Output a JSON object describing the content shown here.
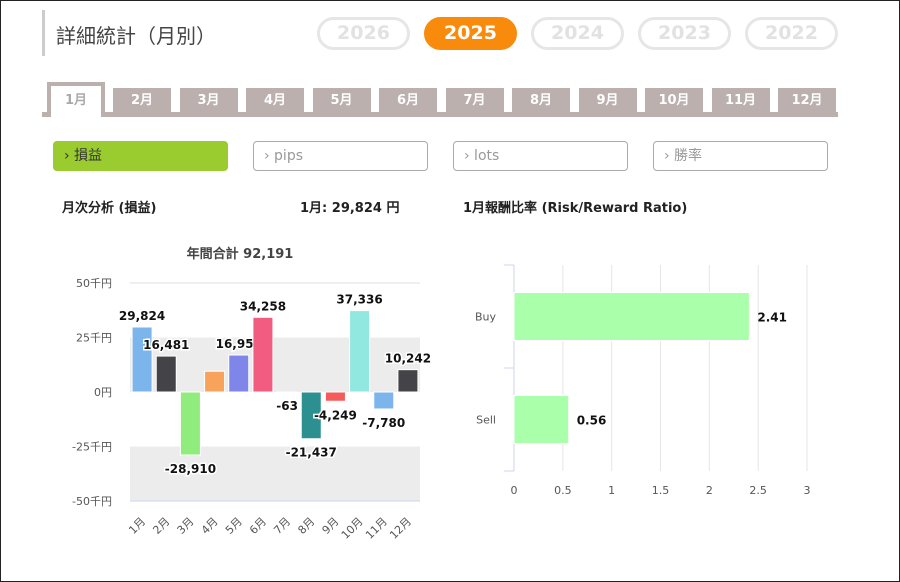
{
  "header": {
    "title": "詳細統計（月別）",
    "years": [
      {
        "label": "2026",
        "active": false
      },
      {
        "label": "2025",
        "active": true
      },
      {
        "label": "2024",
        "active": false
      },
      {
        "label": "2023",
        "active": false
      },
      {
        "label": "2022",
        "active": false
      }
    ]
  },
  "month_tabs": [
    "1月",
    "2月",
    "3月",
    "4月",
    "5月",
    "6月",
    "7月",
    "8月",
    "9月",
    "10月",
    "11月",
    "12月"
  ],
  "active_month": "1月",
  "metric_buttons": [
    {
      "label": "› 損益",
      "active": true
    },
    {
      "label": "› pips",
      "active": false
    },
    {
      "label": "› lots",
      "active": false
    },
    {
      "label": "› 勝率",
      "active": false
    }
  ],
  "left_panel": {
    "title": "月次分析 (損益)",
    "month_value": "1月:  29,824 円"
  },
  "right_panel": {
    "title": "1月報酬比率 (Risk/Reward Ratio)"
  },
  "chart_data": [
    {
      "type": "bar",
      "title": "年間合計 92,191",
      "categories": [
        "1月",
        "2月",
        "3月",
        "4月",
        "5月",
        "6月",
        "7月",
        "8月",
        "9月",
        "10月",
        "11月",
        "12月"
      ],
      "values": [
        29824,
        16481,
        -28910,
        9534,
        16955,
        34258,
        -63,
        -21437,
        -4249,
        37336,
        -7780,
        10242
      ],
      "data_labels": [
        "29,824",
        "16,481",
        "-28,910",
        "",
        "16,955",
        "34,258",
        "-63",
        "-21,437",
        "-4,249",
        "37,336",
        "-7,780",
        "10,242"
      ],
      "colors": [
        "#7cb5ec",
        "#434348",
        "#90ed7d",
        "#f7a35c",
        "#8085e9",
        "#f15c80",
        "#e4d354",
        "#2b908f",
        "#f45b5b",
        "#91e8e1",
        "#7cb5ec",
        "#434348"
      ],
      "yticks": [
        {
          "v": 50000,
          "label": "50千円"
        },
        {
          "v": 25000,
          "label": "25千円"
        },
        {
          "v": 0,
          "label": "0円"
        },
        {
          "v": -25000,
          "label": "-25千円"
        },
        {
          "v": -50000,
          "label": "-50千円"
        }
      ],
      "ylim": [
        -50000,
        50000
      ],
      "grid": "alternating bands"
    },
    {
      "type": "bar",
      "orientation": "horizontal",
      "categories": [
        "Buy",
        "Sell"
      ],
      "values": [
        2.41,
        0.56
      ],
      "data_labels": [
        "2.41",
        "0.56"
      ],
      "color": "#aaffaa",
      "xticks": [
        "0",
        "0.5",
        "1",
        "1.5",
        "2",
        "2.5",
        "3"
      ],
      "xlim": [
        0,
        3
      ],
      "grid": true
    }
  ]
}
